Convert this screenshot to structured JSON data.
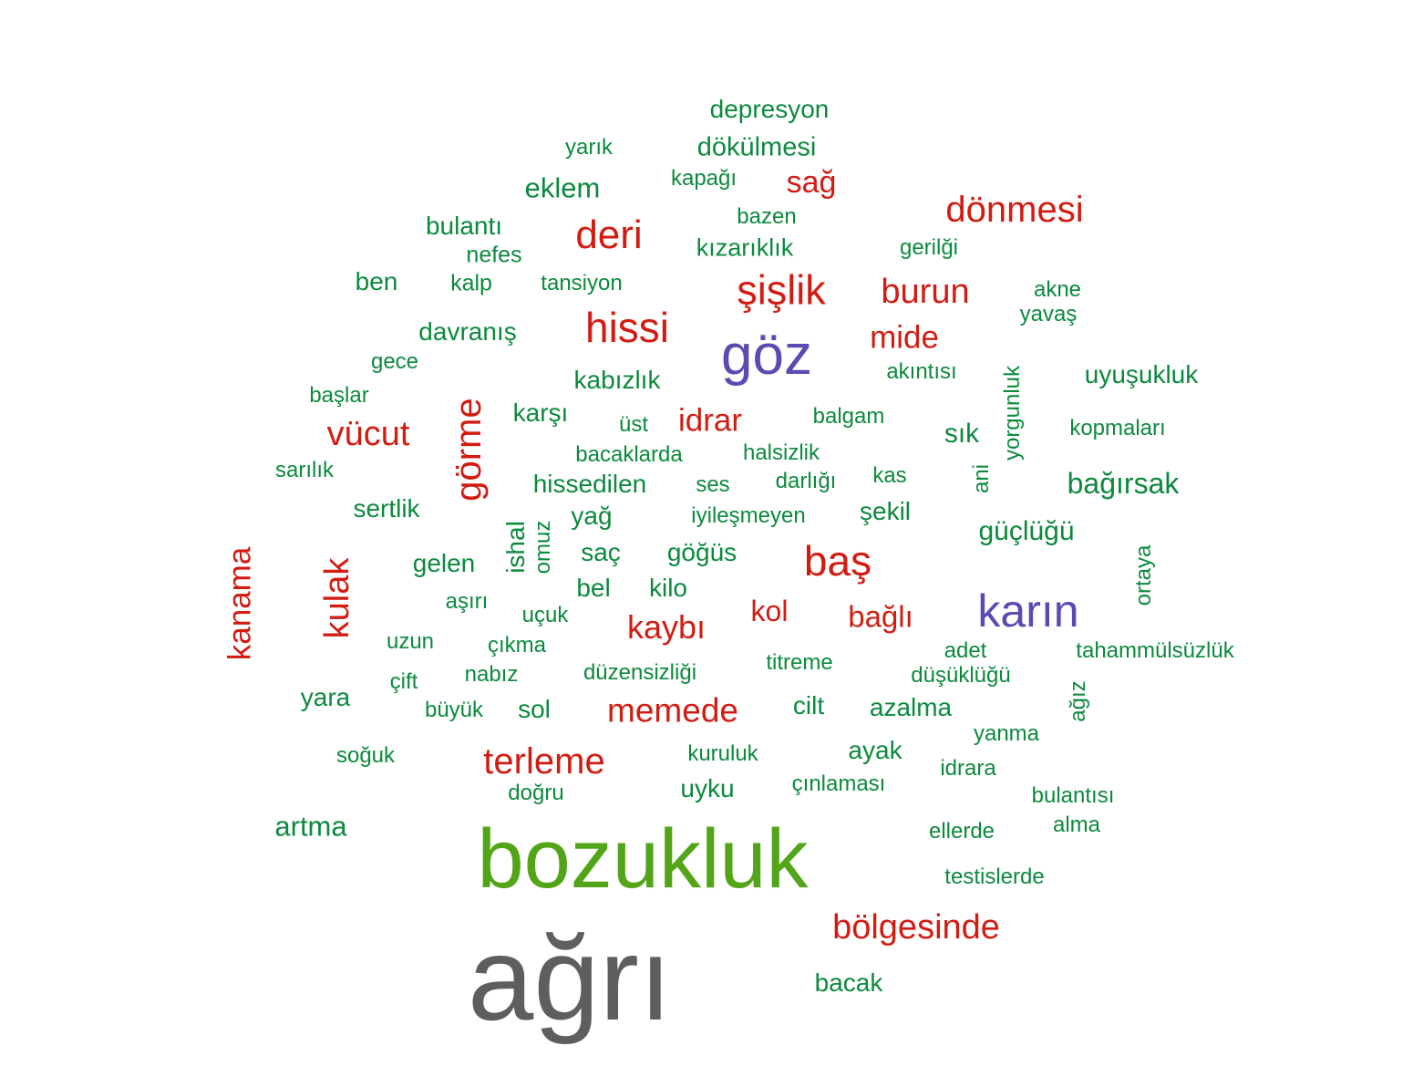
{
  "colors": {
    "green": "#0b8a3c",
    "red": "#d21c12",
    "purple": "#5a4bb2",
    "light_green": "#52a519",
    "gray": "#5e5e5e"
  },
  "words": [
    {
      "text": "depresyon"
    },
    {
      "text": "yarık"
    },
    {
      "text": "dökülmesi"
    },
    {
      "text": "kapağı"
    },
    {
      "text": "sağ"
    },
    {
      "text": "eklem"
    },
    {
      "text": "bazen"
    },
    {
      "text": "dönmesi"
    },
    {
      "text": "bulantı"
    },
    {
      "text": "deri"
    },
    {
      "text": "kızarıklık"
    },
    {
      "text": "gerilği"
    },
    {
      "text": "nefes"
    },
    {
      "text": "ben"
    },
    {
      "text": "kalp"
    },
    {
      "text": "tansiyon"
    },
    {
      "text": "şişlik"
    },
    {
      "text": "burun"
    },
    {
      "text": "akne"
    },
    {
      "text": "yavaş"
    },
    {
      "text": "davranış"
    },
    {
      "text": "hissi"
    },
    {
      "text": "göz"
    },
    {
      "text": "mide"
    },
    {
      "text": "gece"
    },
    {
      "text": "akıntısı"
    },
    {
      "text": "kabızlık"
    },
    {
      "text": "uyuşukluk"
    },
    {
      "text": "başlar"
    },
    {
      "text": "görme"
    },
    {
      "text": "karşı"
    },
    {
      "text": "üst"
    },
    {
      "text": "idrar"
    },
    {
      "text": "balgam"
    },
    {
      "text": "yorgunluk"
    },
    {
      "text": "vücut"
    },
    {
      "text": "sık"
    },
    {
      "text": "kopmaları"
    },
    {
      "text": "bacaklarda"
    },
    {
      "text": "halsizlik"
    },
    {
      "text": "sarılık"
    },
    {
      "text": "kas"
    },
    {
      "text": "ani"
    },
    {
      "text": "hissedilen"
    },
    {
      "text": "ses"
    },
    {
      "text": "darlığı"
    },
    {
      "text": "bağırsak"
    },
    {
      "text": "sertlik"
    },
    {
      "text": "yağ"
    },
    {
      "text": "iyileşmeyen"
    },
    {
      "text": "şekil"
    },
    {
      "text": "ishal"
    },
    {
      "text": "omuz"
    },
    {
      "text": "güçlüğü"
    },
    {
      "text": "kanama"
    },
    {
      "text": "saç"
    },
    {
      "text": "göğüs"
    },
    {
      "text": "baş"
    },
    {
      "text": "kulak"
    },
    {
      "text": "gelen"
    },
    {
      "text": "ortaya"
    },
    {
      "text": "bel"
    },
    {
      "text": "kilo"
    },
    {
      "text": "aşırı"
    },
    {
      "text": "kol"
    },
    {
      "text": "karın"
    },
    {
      "text": "uçuk"
    },
    {
      "text": "bağlı"
    },
    {
      "text": "kaybı"
    },
    {
      "text": "uzun"
    },
    {
      "text": "çıkma"
    },
    {
      "text": "adet"
    },
    {
      "text": "tahammülsüzlük"
    },
    {
      "text": "titreme"
    },
    {
      "text": "çift"
    },
    {
      "text": "nabız"
    },
    {
      "text": "düzensizliği"
    },
    {
      "text": "düşüklüğü"
    },
    {
      "text": "ağız"
    },
    {
      "text": "yara"
    },
    {
      "text": "cilt"
    },
    {
      "text": "azalma"
    },
    {
      "text": "büyük"
    },
    {
      "text": "sol"
    },
    {
      "text": "memede"
    },
    {
      "text": "yanma"
    },
    {
      "text": "ayak"
    },
    {
      "text": "soğuk"
    },
    {
      "text": "kuruluk"
    },
    {
      "text": "terleme"
    },
    {
      "text": "idrara"
    },
    {
      "text": "çınlaması"
    },
    {
      "text": "uyku"
    },
    {
      "text": "doğru"
    },
    {
      "text": "bulantısı"
    },
    {
      "text": "artma"
    },
    {
      "text": "alma"
    },
    {
      "text": "ellerde"
    },
    {
      "text": "bozukluk"
    },
    {
      "text": "testislerde"
    },
    {
      "text": "bölgesinde"
    },
    {
      "text": "bacak"
    },
    {
      "text": "ağrı"
    }
  ]
}
